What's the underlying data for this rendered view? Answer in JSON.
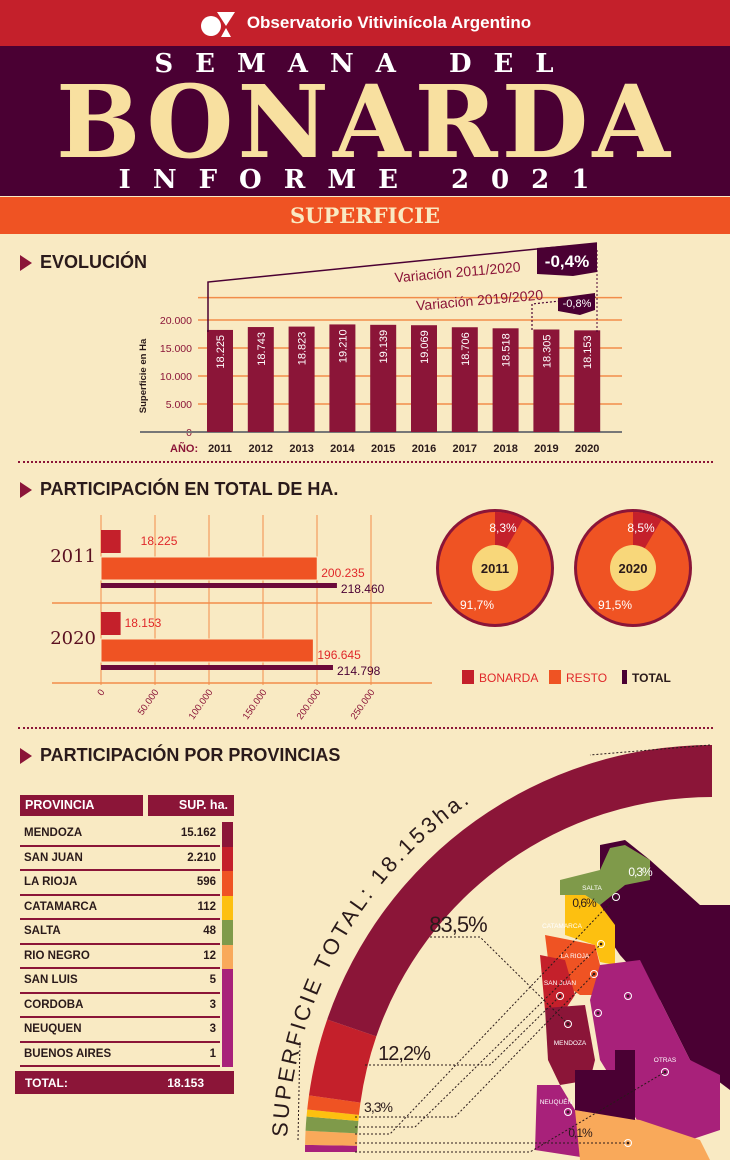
{
  "header": {
    "org": "Observatorio Vitivinícola Argentino",
    "line1": "SEMANA DEL",
    "title": "BONARDA",
    "line3": "INFORME 2021",
    "section": "SUPERFICIE"
  },
  "colors": {
    "wine": "#8b1538",
    "red": "#c4202b",
    "orange": "#ef5323",
    "purple": "#4a0033",
    "cream": "#f9eac3",
    "yellow": "#fdc010",
    "green": "#7f9a4a",
    "lightorange": "#f9a95a",
    "magenta": "#a8217a"
  },
  "chart_data": [
    {
      "type": "bar",
      "title": "EVOLUCIÓN",
      "ylabel": "Superficie en Ha",
      "xlabel": "AÑO:",
      "ylim": [
        0,
        20000
      ],
      "yticks": [
        "0",
        "5.000",
        "10.000",
        "15.000",
        "20.000"
      ],
      "categories": [
        "2011",
        "2012",
        "2013",
        "2014",
        "2015",
        "2016",
        "2017",
        "2018",
        "2019",
        "2020"
      ],
      "values": [
        18225,
        18743,
        18823,
        19210,
        19139,
        19069,
        18706,
        18518,
        18305,
        18153
      ],
      "value_labels": [
        "18.225",
        "18.743",
        "18.823",
        "19.210",
        "19.139",
        "19.069",
        "18.706",
        "18.518",
        "18.305",
        "18.153"
      ],
      "annotations": [
        {
          "label": "Variación 2011/2020",
          "value": "-0,4%"
        },
        {
          "label": "Variación 2019/2020",
          "value": "-0,8%"
        }
      ]
    },
    {
      "type": "bar",
      "orientation": "horizontal",
      "title": "PARTICIPACIÓN EN TOTAL DE HA.",
      "xlim": [
        0,
        250000
      ],
      "xticks": [
        "0",
        "50.000",
        "100.000",
        "150.000",
        "200.000",
        "250.000"
      ],
      "categories": [
        "2011",
        "2020"
      ],
      "series": [
        {
          "name": "BONARDA",
          "values": [
            18225,
            18153
          ],
          "labels": [
            "18.225",
            "18.153"
          ]
        },
        {
          "name": "RESTO",
          "values": [
            200235,
            196645
          ],
          "labels": [
            "200.235",
            "196.645"
          ]
        },
        {
          "name": "TOTAL",
          "values": [
            218460,
            214798
          ],
          "labels": [
            "218.460",
            "214.798"
          ]
        }
      ],
      "legend": [
        "BONARDA",
        "RESTO",
        "TOTAL"
      ]
    },
    {
      "type": "pie",
      "title": "2011",
      "slices": [
        {
          "name": "BONARDA",
          "value": 8.3,
          "label": "8,3%"
        },
        {
          "name": "RESTO",
          "value": 91.7,
          "label": "91,7%"
        }
      ]
    },
    {
      "type": "pie",
      "title": "2020",
      "slices": [
        {
          "name": "BONARDA",
          "value": 8.5,
          "label": "8,5%"
        },
        {
          "name": "RESTO",
          "value": 91.5,
          "label": "91,5%"
        }
      ]
    },
    {
      "type": "table",
      "title": "PARTICIPACIÓN POR PROVINCIAS",
      "columns": [
        "PROVINCIA",
        "SUP. ha."
      ],
      "rows": [
        [
          "MENDOZA",
          "15.162"
        ],
        [
          "SAN JUAN",
          "2.210"
        ],
        [
          "LA RIOJA",
          "596"
        ],
        [
          "CATAMARCA",
          "112"
        ],
        [
          "SALTA",
          "48"
        ],
        [
          "RIO NEGRO",
          "12"
        ],
        [
          "SAN LUIS",
          "5"
        ],
        [
          "CORDOBA",
          "3"
        ],
        [
          "NEUQUEN",
          "3"
        ],
        [
          "BUENOS AIRES",
          "1"
        ]
      ],
      "total": [
        "TOTAL:",
        "18.153"
      ]
    },
    {
      "type": "pie",
      "title": "SUPERFICIE TOTAL: 18.153ha.",
      "slices": [
        {
          "name": "MENDOZA",
          "label": "83,5%"
        },
        {
          "name": "SAN JUAN",
          "label": "12,2%"
        },
        {
          "name": "LA RIOJA",
          "label": "3,3%"
        },
        {
          "name": "CATAMARCA",
          "label": "0,6%"
        },
        {
          "name": "SALTA",
          "label": "0,3%"
        },
        {
          "name": "RIO NEGRO",
          "label": "0,1%"
        },
        {
          "name": "OTRAS",
          "label": ""
        }
      ],
      "map_labels": [
        "SALTA",
        "CATAMARCA",
        "LA RIOJA",
        "SAN JUAN",
        "MENDOZA",
        "NEUQUÉN",
        "OTRAS"
      ]
    }
  ]
}
